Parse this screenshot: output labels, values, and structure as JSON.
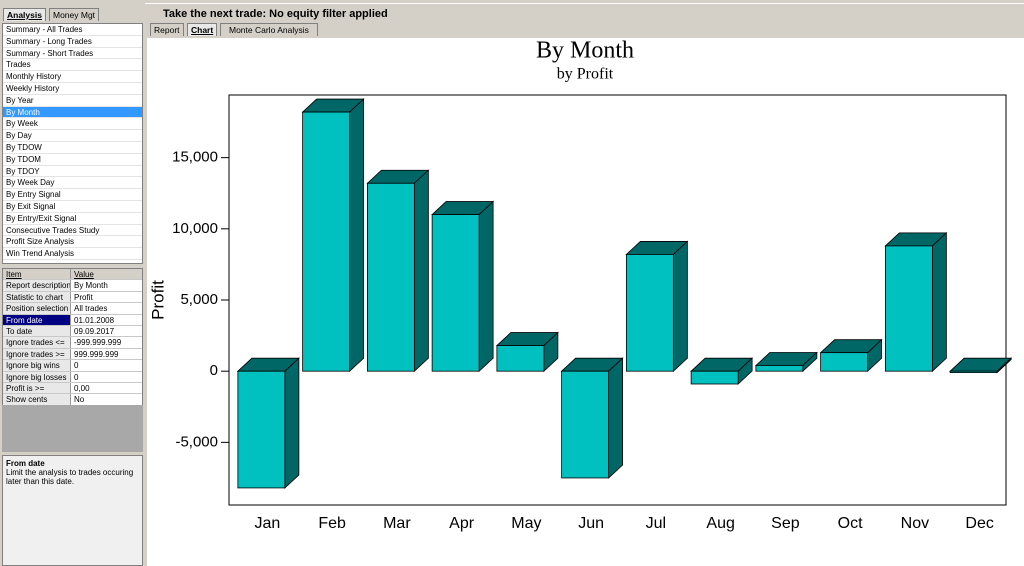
{
  "left_tabs": [
    "Analysis",
    "Money Mgt"
  ],
  "active_left_tab": 0,
  "reports": [
    "Summary - All Trades",
    "Summary - Long Trades",
    "Summary - Short Trades",
    "Trades",
    "Monthly History",
    "Weekly History",
    "By Year",
    "By Month",
    "By Week",
    "By Day",
    "By TDOW",
    "By TDOM",
    "By TDOY",
    "By Week Day",
    "By Entry Signal",
    "By Exit Signal",
    "By Entry/Exit Signal",
    "Consecutive Trades Study",
    "Profit Size Analysis",
    "Win Trend Analysis"
  ],
  "selected_report": 7,
  "properties": {
    "header": [
      "Item",
      "Value"
    ],
    "rows": [
      [
        "Report description",
        "By Month"
      ],
      [
        "Statistic to chart",
        "Profit"
      ],
      [
        "Position selection",
        "All trades"
      ],
      [
        "From date",
        "01.01.2008"
      ],
      [
        "To date",
        "09.09.2017"
      ],
      [
        "Ignore trades <=",
        "-999.999.999"
      ],
      [
        "Ignore trades >=",
        "999.999.999"
      ],
      [
        "Ignore big wins",
        "0"
      ],
      [
        "Ignore big losses",
        "0"
      ],
      [
        "Profit is >=",
        "0,00"
      ],
      [
        "Show cents",
        "No"
      ]
    ],
    "selected_row": 3
  },
  "help": {
    "title": "From date",
    "text": "Limit the analysis to trades occuring later than this date."
  },
  "status": "Take the next trade: No equity filter applied",
  "view_tabs": [
    "Report",
    "Chart",
    "Monte Carlo Analysis"
  ],
  "active_view_tab": 1,
  "chart_data": {
    "type": "bar3d",
    "title": "By Month",
    "subtitle": "by Profit",
    "y_label": "Profit",
    "categories": [
      "Jan",
      "Feb",
      "Mar",
      "Apr",
      "May",
      "Jun",
      "Jul",
      "Aug",
      "Sep",
      "Oct",
      "Nov",
      "Dec"
    ],
    "values": [
      -8200,
      18200,
      13200,
      11000,
      1800,
      -7500,
      8200,
      -900,
      400,
      1300,
      8800,
      -100
    ],
    "color": "#00c0c0",
    "depth_color": "#006666",
    "ylim": [
      -9400,
      19400
    ],
    "yticks": [
      {
        "value": -5000,
        "label": "-5,000"
      },
      0,
      {
        "value": 5000,
        "label": "5,000"
      },
      {
        "value": 10000,
        "label": "10,000"
      },
      {
        "value": 15000,
        "label": "15,000"
      }
    ]
  }
}
